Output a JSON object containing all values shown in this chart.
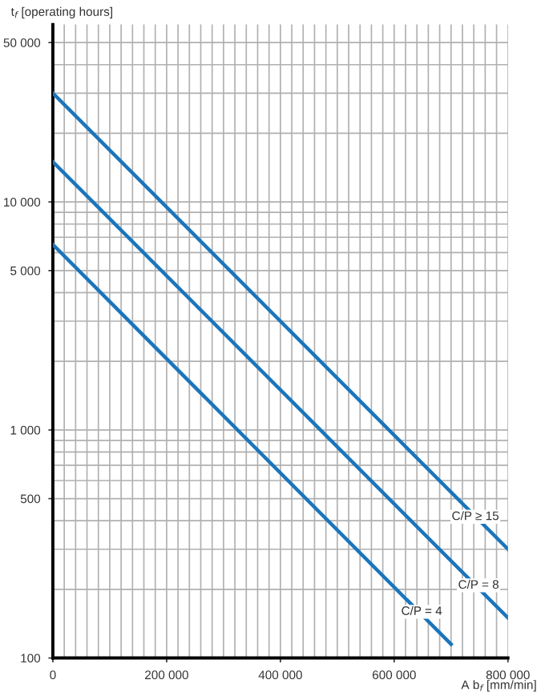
{
  "chart_data": {
    "type": "line",
    "ylabel": "t$_{f}$ [operating hours]",
    "xlabel": "A b$_{f}$ [mm/min]",
    "series": [
      {
        "name": "C/P ≥ 15",
        "color": "#1a75bc",
        "x": [
          0,
          800000
        ],
        "values": [
          30000,
          300
        ]
      },
      {
        "name": "C/P = 8",
        "color": "#1a75bc",
        "x": [
          0,
          800000
        ],
        "values": [
          15000,
          150
        ]
      },
      {
        "name": "C/P = 4",
        "color": "#1a75bc",
        "x": [
          0,
          700000
        ],
        "values": [
          6500,
          115
        ]
      }
    ],
    "log": "y",
    "xlim": [
      0,
      800000
    ],
    "ylim": [
      100,
      60000
    ],
    "xticks": [
      0,
      {
        "value": 20000,
        "label": null
      },
      {
        "value": 40000,
        "label": null
      },
      {
        "value": 60000,
        "label": null
      },
      {
        "value": 80000,
        "label": null
      },
      {
        "value": 100000,
        "label": null
      },
      {
        "value": 120000,
        "label": null
      },
      {
        "value": 140000,
        "label": null
      },
      {
        "value": 160000,
        "label": null
      },
      {
        "value": 180000,
        "label": null
      },
      {
        "value": 200000,
        "label": "200 000"
      },
      {
        "value": 220000,
        "label": null
      },
      {
        "value": 240000,
        "label": null
      },
      {
        "value": 260000,
        "label": null
      },
      {
        "value": 280000,
        "label": null
      },
      {
        "value": 300000,
        "label": null
      },
      {
        "value": 320000,
        "label": null
      },
      {
        "value": 340000,
        "label": null
      },
      {
        "value": 360000,
        "label": null
      },
      {
        "value": 380000,
        "label": null
      },
      {
        "value": 400000,
        "label": "400 000"
      },
      {
        "value": 420000,
        "label": null
      },
      {
        "value": 440000,
        "label": null
      },
      {
        "value": 460000,
        "label": null
      },
      {
        "value": 480000,
        "label": null
      },
      {
        "value": 500000,
        "label": null
      },
      {
        "value": 520000,
        "label": null
      },
      {
        "value": 540000,
        "label": null
      },
      {
        "value": 560000,
        "label": null
      },
      {
        "value": 580000,
        "label": null
      },
      {
        "value": 600000,
        "label": "600 000"
      },
      {
        "value": 620000,
        "label": null
      },
      {
        "value": 640000,
        "label": null
      },
      {
        "value": 660000,
        "label": null
      },
      {
        "value": 680000,
        "label": null
      },
      {
        "value": 700000,
        "label": null
      },
      {
        "value": 720000,
        "label": null
      },
      {
        "value": 740000,
        "label": null
      },
      {
        "value": 760000,
        "label": null
      },
      {
        "value": 780000,
        "label": null
      },
      {
        "value": 800000,
        "label": "800 000"
      }
    ],
    "yticks": [
      100,
      {
        "value": 200,
        "label": null
      },
      {
        "value": 300,
        "label": null
      },
      {
        "value": 400,
        "label": null
      },
      500,
      {
        "value": 600,
        "label": null
      },
      {
        "value": 700,
        "label": null
      },
      {
        "value": 800,
        "label": null
      },
      {
        "value": 900,
        "label": null
      },
      {
        "value": 1000,
        "label": "1 000"
      },
      {
        "value": 2000,
        "label": null
      },
      {
        "value": 3000,
        "label": null
      },
      {
        "value": 4000,
        "label": null
      },
      {
        "value": 5000,
        "label": "5 000"
      },
      {
        "value": 6000,
        "label": null
      },
      {
        "value": 7000,
        "label": null
      },
      {
        "value": 8000,
        "label": null
      },
      {
        "value": 9000,
        "label": null
      },
      {
        "value": 10000,
        "label": "10 000"
      },
      {
        "value": 20000,
        "label": null
      },
      {
        "value": 30000,
        "label": null
      },
      {
        "value": 40000,
        "label": null
      },
      {
        "value": 50000,
        "label": "50 000"
      }
    ],
    "grid": true,
    "line_style": "solid"
  }
}
